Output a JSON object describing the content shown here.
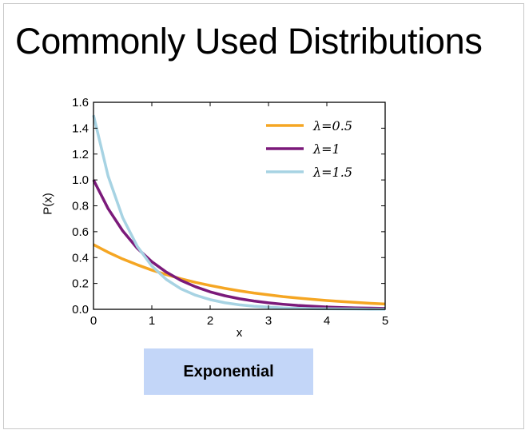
{
  "slide": {
    "title": "Commonly Used Distributions",
    "caption": "Exponential"
  },
  "chart_data": {
    "type": "line",
    "xlabel": "x",
    "ylabel": "P(x)",
    "xlim": [
      0,
      5
    ],
    "ylim": [
      0,
      1.6
    ],
    "xticks": [
      "0",
      "1",
      "2",
      "3",
      "4",
      "5"
    ],
    "yticks": [
      "0.0",
      "0.2",
      "0.4",
      "0.6",
      "0.8",
      "1.0",
      "1.2",
      "1.4",
      "1.6"
    ],
    "grid": false,
    "legend_position": "top-right",
    "x": [
      0,
      0.25,
      0.5,
      0.75,
      1,
      1.25,
      1.5,
      1.75,
      2,
      2.25,
      2.5,
      2.75,
      3,
      3.25,
      3.5,
      3.75,
      4,
      4.25,
      4.5,
      4.75,
      5
    ],
    "series": [
      {
        "name": "λ=0.5",
        "color": "#f5a623",
        "values": [
          0.5,
          0.441,
          0.389,
          0.344,
          0.303,
          0.268,
          0.236,
          0.208,
          0.184,
          0.162,
          0.143,
          0.126,
          0.112,
          0.098,
          0.087,
          0.077,
          0.068,
          0.06,
          0.053,
          0.046,
          0.041
        ]
      },
      {
        "name": "λ=1",
        "color": "#7b1a7a",
        "values": [
          1.0,
          0.779,
          0.607,
          0.472,
          0.368,
          0.287,
          0.223,
          0.174,
          0.135,
          0.105,
          0.082,
          0.064,
          0.05,
          0.039,
          0.03,
          0.024,
          0.018,
          0.014,
          0.011,
          0.009,
          0.007
        ]
      },
      {
        "name": "λ=1.5",
        "color": "#a7d3e3",
        "values": [
          1.5,
          1.031,
          0.709,
          0.487,
          0.335,
          0.23,
          0.158,
          0.109,
          0.075,
          0.051,
          0.035,
          0.024,
          0.017,
          0.011,
          0.008,
          0.005,
          0.004,
          0.003,
          0.002,
          0.001,
          0.001
        ]
      }
    ]
  }
}
